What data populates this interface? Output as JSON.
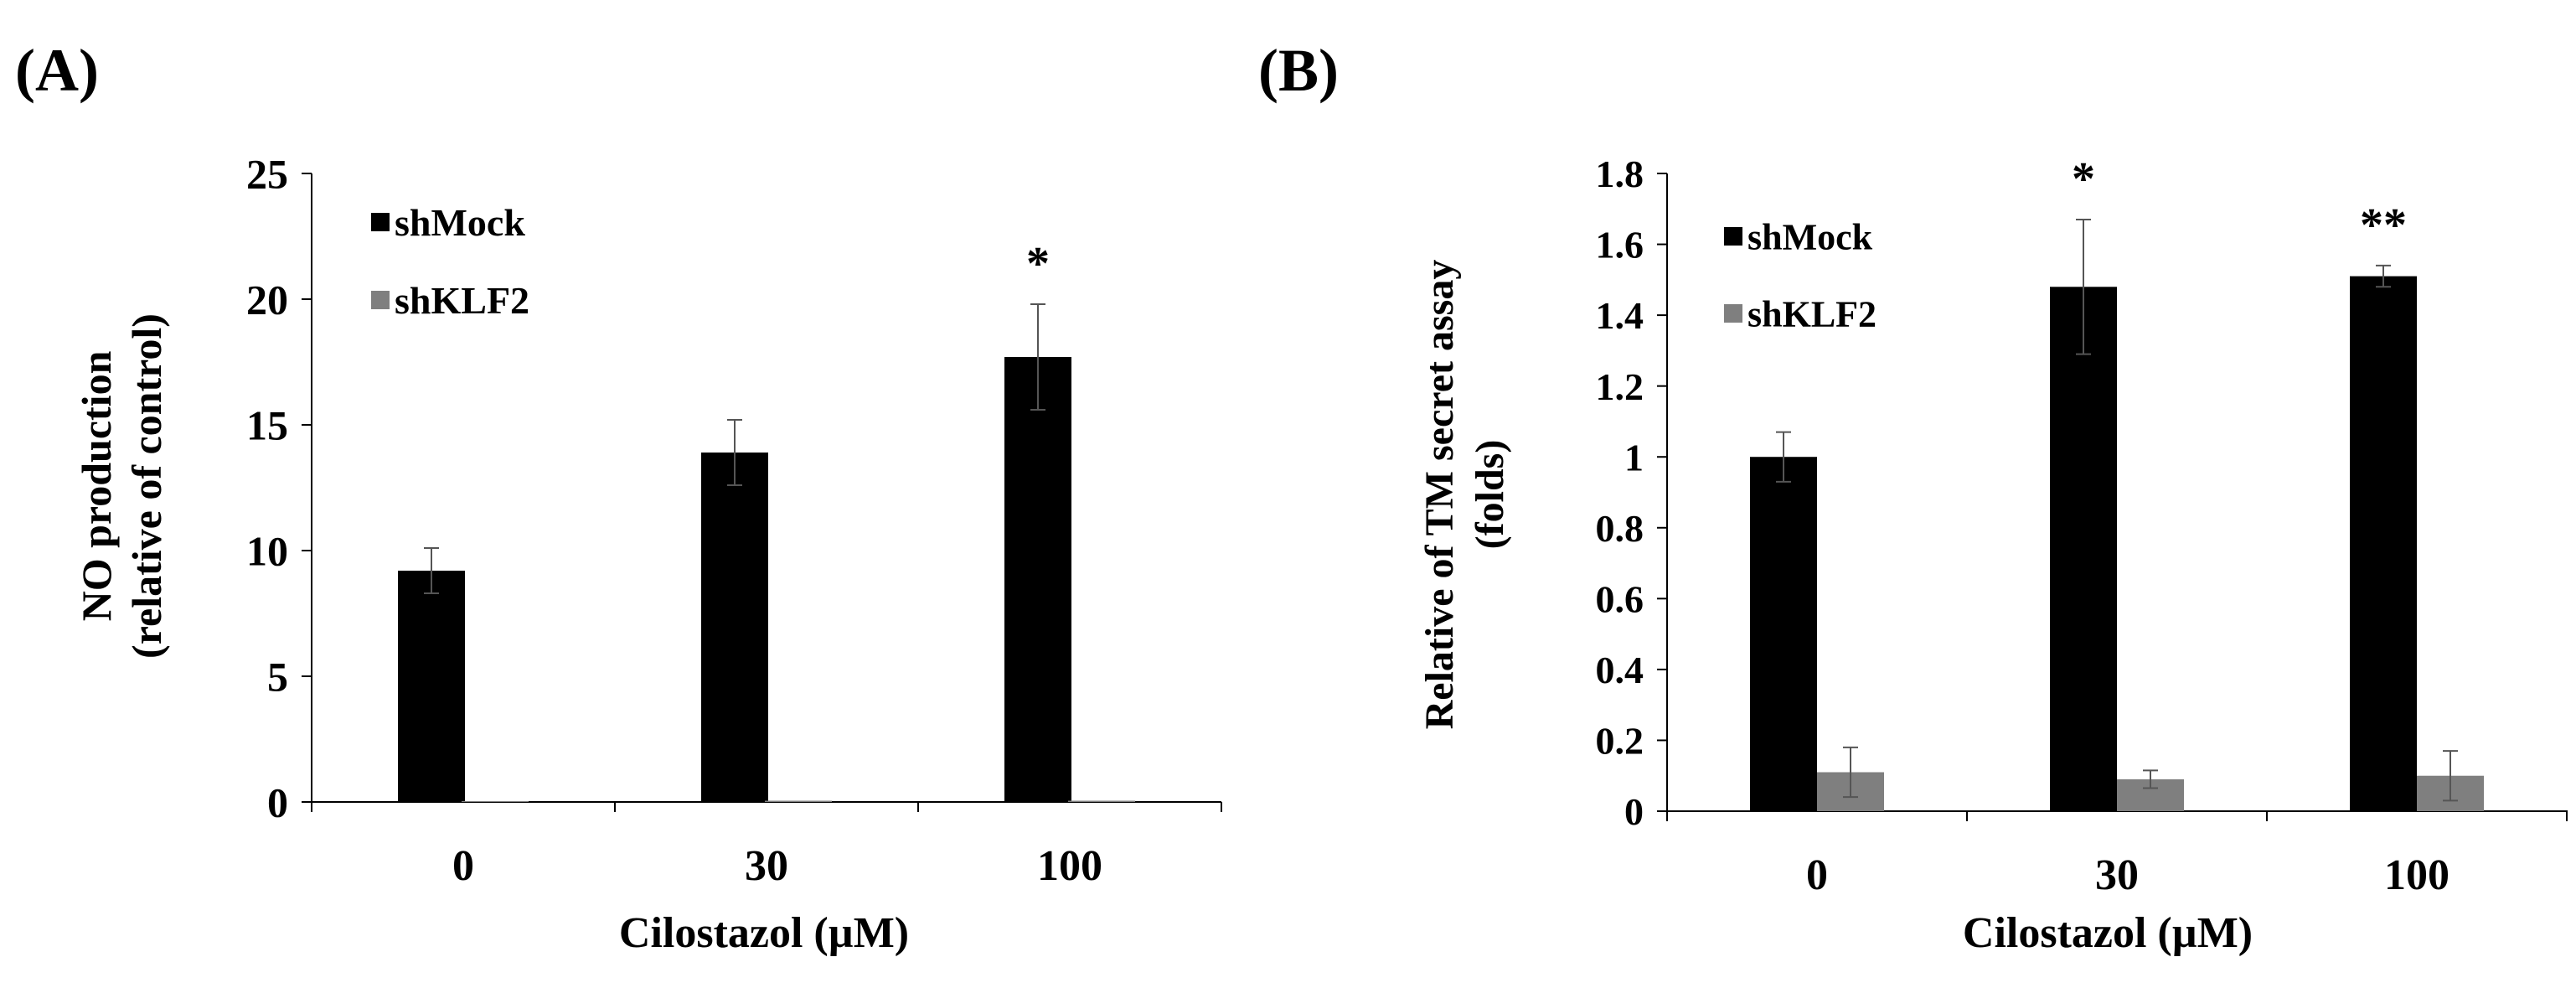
{
  "chart_data": [
    {
      "type": "bar",
      "panel_label": "(A)",
      "title": "",
      "xlabel": "Cilostazol (µM)",
      "ylabel": [
        "NO production",
        "(relative of control)"
      ],
      "ylim": [
        0,
        25
      ],
      "yticks": [
        "0",
        "5",
        "10",
        "15",
        "20",
        "25"
      ],
      "categories": [
        "0",
        "30",
        "100"
      ],
      "series": [
        {
          "name": "shMock",
          "color": "#000000",
          "values": [
            9.2,
            13.9,
            17.7
          ],
          "errors": [
            0.9,
            1.3,
            2.1
          ]
        },
        {
          "name": "shKLF2",
          "color": "#7f7f7f",
          "values": [
            0,
            0.05,
            0.05
          ],
          "errors": [
            0,
            0,
            0
          ]
        }
      ],
      "annotations": [
        "",
        "",
        "*"
      ],
      "legend": "top-left",
      "grid": false
    },
    {
      "type": "bar",
      "panel_label": "(B)",
      "title": "",
      "xlabel": "Cilostazol (µM)",
      "ylabel": [
        "Relative of TM secret assay",
        "(folds)"
      ],
      "ylim": [
        0,
        1.8
      ],
      "yticks": [
        "0",
        "0.2",
        "0.4",
        "0.6",
        "0.8",
        "1",
        "1.2",
        "1.4",
        "1.6",
        "1.8"
      ],
      "categories": [
        "0",
        "30",
        "100"
      ],
      "series": [
        {
          "name": "shMock",
          "color": "#000000",
          "values": [
            1.0,
            1.48,
            1.51
          ],
          "errors": [
            0.07,
            0.19,
            0.03
          ]
        },
        {
          "name": "shKLF2",
          "color": "#7f7f7f",
          "values": [
            0.11,
            0.09,
            0.1
          ],
          "errors": [
            0.07,
            0.025,
            0.07
          ]
        }
      ],
      "annotations": [
        "",
        "*",
        "**"
      ],
      "legend": "top-left",
      "grid": false
    }
  ]
}
